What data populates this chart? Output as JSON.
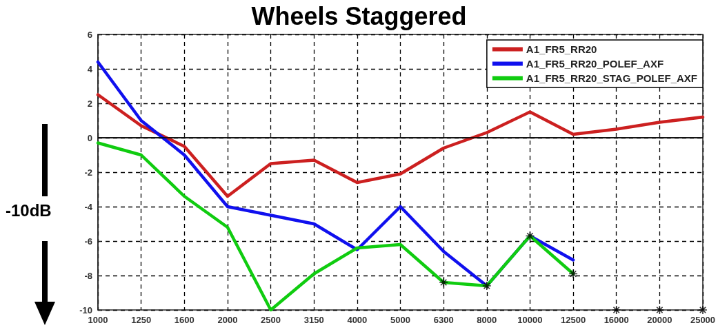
{
  "chart_data": {
    "type": "line",
    "title": "Wheels Staggered",
    "categories": [
      "1000",
      "1250",
      "1600",
      "2000",
      "2500",
      "3150",
      "4000",
      "5000",
      "6300",
      "8000",
      "10000",
      "12500",
      "16000",
      "20000",
      "25000"
    ],
    "series": [
      {
        "name": "A1_FR5_RR20",
        "color": "#cc2020",
        "values": [
          2.5,
          0.7,
          -0.5,
          -3.4,
          -1.5,
          -1.3,
          -2.6,
          -2.1,
          -0.6,
          0.3,
          1.5,
          0.2,
          0.5,
          0.9,
          1.2
        ]
      },
      {
        "name": "A1_FR5_RR20_POLEF_AXF",
        "color": "#1010ee",
        "values": [
          4.4,
          1.0,
          -1.0,
          -4.0,
          -4.5,
          -5.0,
          -6.5,
          -4.0,
          -6.6,
          -8.6,
          -5.7,
          -7.1,
          null,
          null,
          null
        ]
      },
      {
        "name": "A1_FR5_RR20_STAG_POLEF_AXF",
        "color": "#10cc10",
        "values": [
          -0.3,
          -1.0,
          -3.4,
          -5.2,
          -10,
          -7.9,
          -6.4,
          -6.2,
          -8.4,
          -8.6,
          -5.7,
          -7.9,
          null,
          null,
          null
        ]
      },
      {
        "type": "scatter",
        "color": "#000000",
        "marker": "cross",
        "values": [
          null,
          null,
          null,
          null,
          null,
          null,
          null,
          null,
          -8.4,
          -8.6,
          -5.7,
          -7.9,
          -10,
          -10,
          -10
        ]
      }
    ],
    "ylim": [
      -10,
      6
    ],
    "yticks": [
      -10,
      -8,
      -6,
      -4,
      -2,
      0,
      2,
      4,
      6
    ],
    "ref_lines": [
      {
        "axis": "y",
        "value": 0,
        "color": "#000000",
        "line_style": "solid"
      }
    ],
    "annotations": [
      "-10dB"
    ],
    "grid": true,
    "legend": "top right",
    "marker": "none",
    "line_style": "solid"
  }
}
